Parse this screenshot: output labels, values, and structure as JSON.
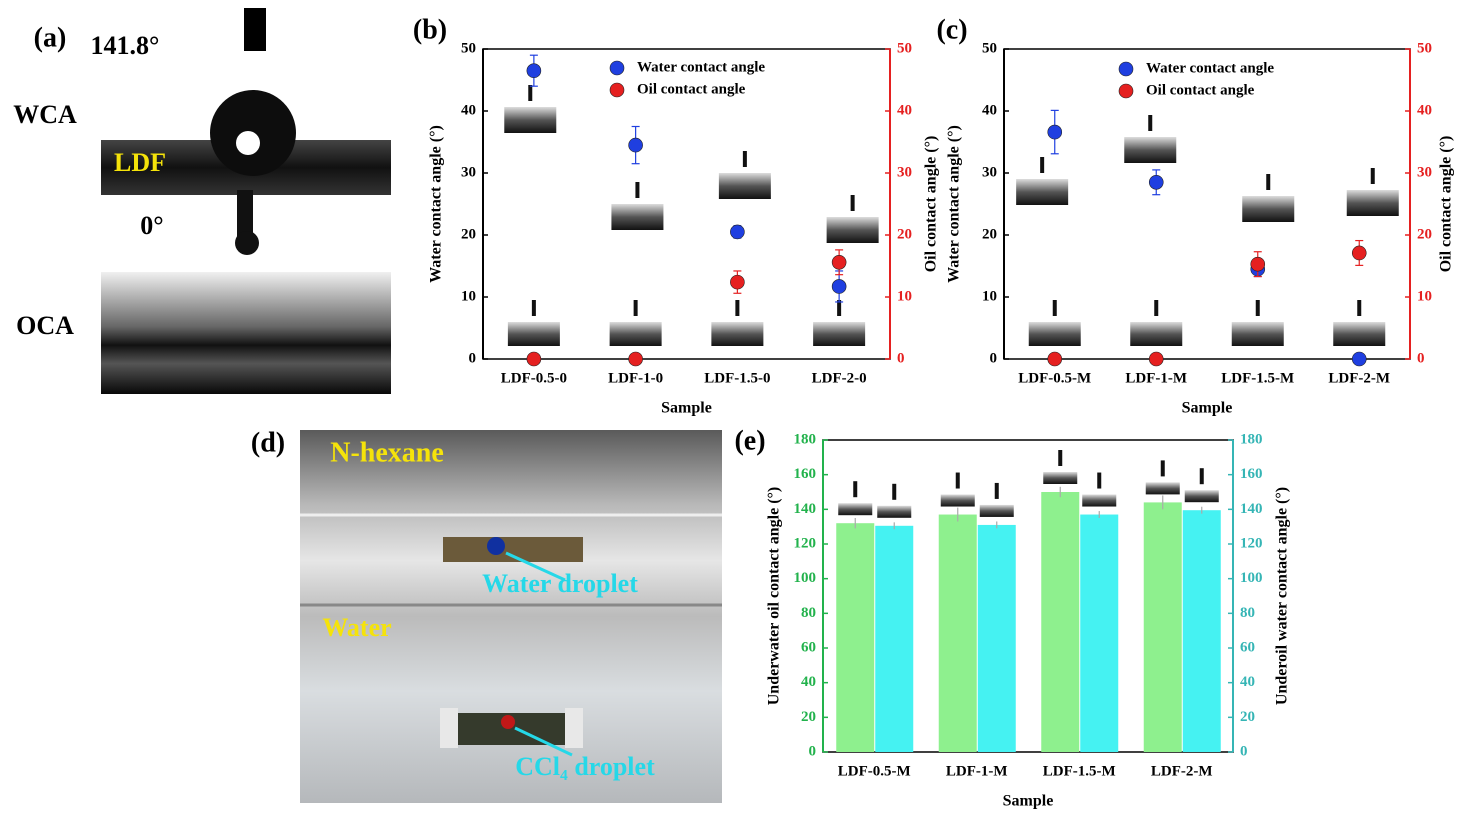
{
  "chart_data": [
    {
      "type": "scatter",
      "panel_label": "(b)",
      "xlabel": "Sample",
      "ylabel": "Water contact angle (°)",
      "y2label": "Oil contact angle (°)",
      "categories": [
        "LDF-0.5-0",
        "LDF-1-0",
        "LDF-1.5-0",
        "LDF-2-0"
      ],
      "series": [
        {
          "name": "Water contact angle",
          "color": "#1f3fe0",
          "values": [
            46.5,
            34.5,
            20.5,
            11.7
          ],
          "errors": [
            2.5,
            3,
            1,
            2.5
          ]
        },
        {
          "name": "Oil contact angle",
          "color": "#e52020",
          "axis": "y2",
          "values": [
            0,
            0,
            12.4,
            15.6
          ],
          "errors": [
            0,
            0,
            1.8,
            2
          ]
        }
      ],
      "ylim": [
        0,
        50
      ],
      "yticks": [
        0,
        10,
        20,
        30,
        40,
        50
      ],
      "y2lim": [
        0,
        50
      ],
      "y2ticks": [
        0,
        10,
        20,
        30,
        40,
        50
      ],
      "ycolor": "#000000",
      "y2color": "#e52020",
      "legend": "upper center"
    },
    {
      "type": "scatter",
      "panel_label": "(c)",
      "xlabel": "Sample",
      "ylabel": "Water contact angle (°)",
      "y2label": "Oil contact angle (°)",
      "categories": [
        "LDF-0.5-M",
        "LDF-1-M",
        "LDF-1.5-M",
        "LDF-2-M"
      ],
      "series": [
        {
          "name": "Water contact angle",
          "color": "#1f3fe0",
          "values": [
            36.6,
            28.5,
            14.5,
            0
          ],
          "errors": [
            3.5,
            2,
            1.2,
            0
          ]
        },
        {
          "name": "Oil contact angle",
          "color": "#e52020",
          "axis": "y2",
          "values": [
            0,
            0,
            15.3,
            17.1
          ],
          "errors": [
            0,
            0,
            2,
            2
          ]
        }
      ],
      "ylim": [
        0,
        50
      ],
      "yticks": [
        0,
        10,
        20,
        30,
        40,
        50
      ],
      "y2lim": [
        0,
        50
      ],
      "y2ticks": [
        0,
        10,
        20,
        30,
        40,
        50
      ],
      "ycolor": "#000000",
      "y2color": "#e52020",
      "legend": "upper center"
    },
    {
      "type": "bar",
      "panel_label": "(e)",
      "xlabel": "Sample",
      "ylabel": "Underwater oil contact angle (°)",
      "y2label": "Underoil water contact angle (°)",
      "categories": [
        "LDF-0.5-M",
        "LDF-1-M",
        "LDF-1.5-M",
        "LDF-2-M"
      ],
      "series": [
        {
          "color": "#8ef08e",
          "values": [
            132,
            137,
            150,
            144
          ],
          "errors": [
            3,
            4,
            3,
            4
          ]
        },
        {
          "color": "#45f2f2",
          "axis": "y2",
          "values": [
            130.5,
            131,
            137,
            139.5
          ],
          "errors": [
            2,
            2,
            2,
            2
          ]
        }
      ],
      "ylim": [
        0,
        180
      ],
      "yticks": [
        0,
        20,
        40,
        60,
        80,
        100,
        120,
        140,
        160,
        180
      ],
      "y2lim": [
        0,
        180
      ],
      "y2ticks": [
        0,
        20,
        40,
        60,
        80,
        100,
        120,
        140,
        160,
        180
      ],
      "ycolor": "#22b24c",
      "y2color": "#35b5b5"
    }
  ],
  "panel_a": {
    "label": "(a)",
    "top_angle": "141.8°",
    "wca": "WCA",
    "film": "LDF",
    "bottom_angle": "0°",
    "oca": "OCA"
  },
  "panel_d": {
    "label": "(d)",
    "top_liquid": "N-hexane",
    "top_droplet": "Water droplet",
    "bottom_liquid": "Water",
    "bottom_droplet": "CCl₄ droplet"
  }
}
